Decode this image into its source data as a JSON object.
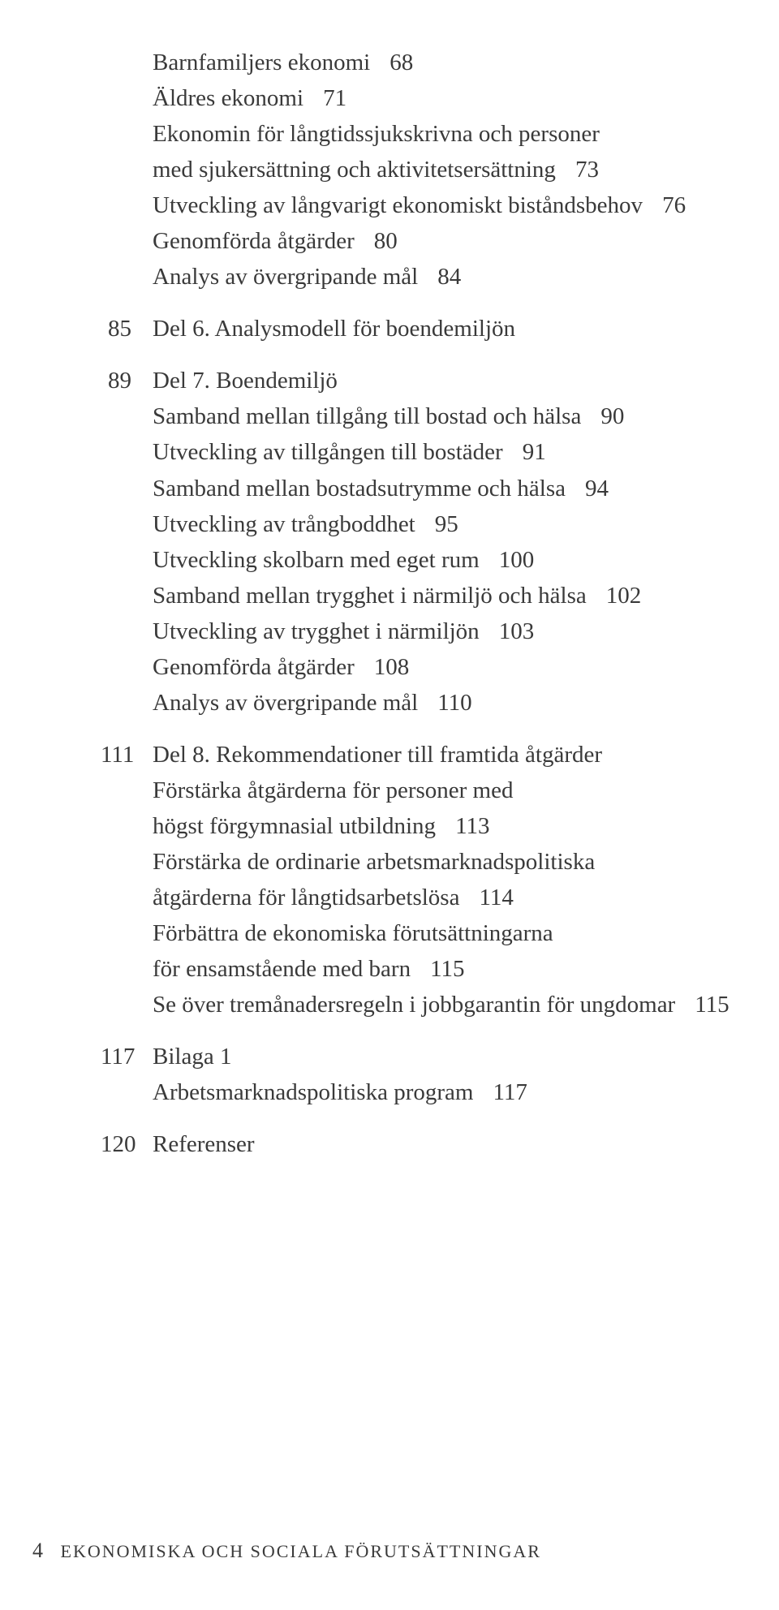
{
  "toc": {
    "initial_subs": [
      {
        "text": "Barnfamiljers ekonomi",
        "page": "68"
      },
      {
        "text": "Äldres ekonomi",
        "page": "71"
      },
      {
        "text": "Ekonomin för långtidssjukskrivna och personer",
        "page": ""
      },
      {
        "text": "med sjukersättning och aktivitetsersättning",
        "page": "73"
      },
      {
        "text": "Utveckling av långvarigt ekonomiskt biståndsbehov",
        "page": "76"
      },
      {
        "text": "Genomförda åtgärder",
        "page": "80"
      },
      {
        "text": "Analys av övergripande mål",
        "page": "84"
      }
    ],
    "sections": [
      {
        "page": "85",
        "title": "Del 6. Analysmodell för boendemiljön",
        "subs": []
      },
      {
        "page": "89",
        "title": "Del 7. Boendemiljö",
        "subs": [
          {
            "text": "Samband mellan tillgång till bostad och hälsa",
            "page": "90"
          },
          {
            "text": "Utveckling av tillgången till bostäder",
            "page": "91"
          },
          {
            "text": "Samband mellan bostadsutrymme och hälsa",
            "page": "94"
          },
          {
            "text": "Utveckling av trångboddhet",
            "page": "95"
          },
          {
            "text": "Utveckling skolbarn med eget rum",
            "page": "100"
          },
          {
            "text": "Samband mellan trygghet i närmiljö och hälsa",
            "page": "102"
          },
          {
            "text": "Utveckling av trygghet i närmiljön",
            "page": "103"
          },
          {
            "text": "Genomförda åtgärder",
            "page": "108"
          },
          {
            "text": "Analys av övergripande mål",
            "page": "110"
          }
        ]
      },
      {
        "page": "111",
        "title": "Del 8. Rekommendationer till framtida åtgärder",
        "subs": [
          {
            "text": "Förstärka åtgärderna för personer med",
            "page": ""
          },
          {
            "text": "högst förgymnasial utbildning",
            "page": "113"
          },
          {
            "text": "Förstärka de ordinarie arbetsmarknadspolitiska",
            "page": ""
          },
          {
            "text": "åtgärderna för långtidsarbetslösa",
            "page": "114"
          },
          {
            "text": "Förbättra de ekonomiska förutsättningarna",
            "page": ""
          },
          {
            "text": "för ensamstående med barn",
            "page": "115"
          },
          {
            "text": "Se över tremånadersregeln i jobbgarantin för ungdomar",
            "page": "115"
          }
        ]
      },
      {
        "page": "117",
        "title": "Bilaga 1",
        "subs": [
          {
            "text": "Arbetsmarknadspolitiska program",
            "page": "117"
          }
        ]
      },
      {
        "page": "120",
        "title": "Referenser",
        "subs": []
      }
    ]
  },
  "footer": {
    "page_number": "4",
    "running_title": "EKONOMISKA OCH SOCIALA FÖRUTSÄTTNINGAR"
  }
}
